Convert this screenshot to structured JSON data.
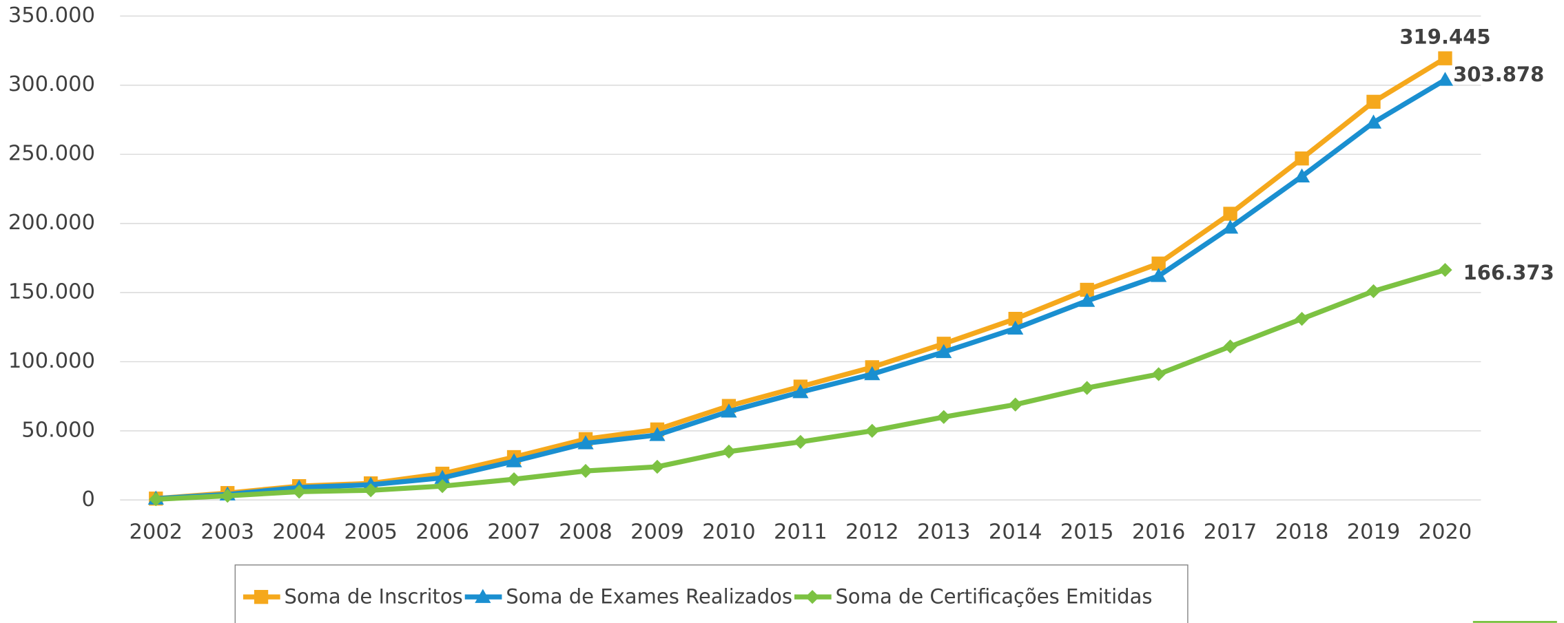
{
  "chart_data": {
    "type": "line",
    "categories": [
      "2002",
      "2003",
      "2004",
      "2005",
      "2006",
      "2007",
      "2008",
      "2009",
      "2010",
      "2011",
      "2012",
      "2013",
      "2014",
      "2015",
      "2016",
      "2017",
      "2018",
      "2019",
      "2020"
    ],
    "series": [
      {
        "name": "Soma de Inscritos",
        "color": "#f5a81c",
        "marker": "square",
        "values": [
          1000,
          5000,
          10000,
          12000,
          19000,
          31000,
          44000,
          51000,
          68000,
          82000,
          96000,
          113000,
          131000,
          152000,
          171000,
          207000,
          247000,
          288000,
          319445
        ],
        "value_labels": [
          null,
          null,
          null,
          null,
          null,
          null,
          null,
          null,
          null,
          null,
          null,
          null,
          null,
          null,
          null,
          null,
          null,
          null,
          "319.445"
        ]
      },
      {
        "name": "Soma de Exames Realizados",
        "color": "#1a8fd0",
        "marker": "triangle",
        "values": [
          1000,
          4000,
          9000,
          11000,
          16000,
          28000,
          41000,
          47000,
          64000,
          78000,
          91000,
          107000,
          124000,
          144000,
          162000,
          197000,
          234000,
          273000,
          303878
        ],
        "value_labels": [
          null,
          null,
          null,
          null,
          null,
          null,
          null,
          null,
          null,
          null,
          null,
          null,
          null,
          null,
          null,
          null,
          null,
          null,
          "303.878"
        ]
      },
      {
        "name": "Soma de Certificações Emitidas",
        "color": "#7cc242",
        "marker": "diamond",
        "values": [
          500,
          3000,
          6000,
          7000,
          10000,
          15000,
          21000,
          24000,
          35000,
          42000,
          50000,
          60000,
          69000,
          81000,
          91000,
          111000,
          131000,
          151000,
          166373
        ],
        "value_labels": [
          null,
          null,
          null,
          null,
          null,
          null,
          null,
          null,
          null,
          null,
          null,
          null,
          null,
          null,
          null,
          null,
          null,
          null,
          "166.373"
        ]
      }
    ],
    "ylim": [
      0,
      350000
    ],
    "yticks": [
      0,
      {
        "value": 50000,
        "label": "50.000"
      },
      {
        "value": 100000,
        "label": "100.000"
      },
      {
        "value": 150000,
        "label": "150.000"
      },
      {
        "value": 200000,
        "label": "200.000"
      },
      {
        "value": 250000,
        "label": "250.000"
      },
      {
        "value": 300000,
        "label": "300.000"
      },
      {
        "value": 350000,
        "label": "350.000"
      }
    ],
    "grid": true,
    "legend": "bottom"
  }
}
